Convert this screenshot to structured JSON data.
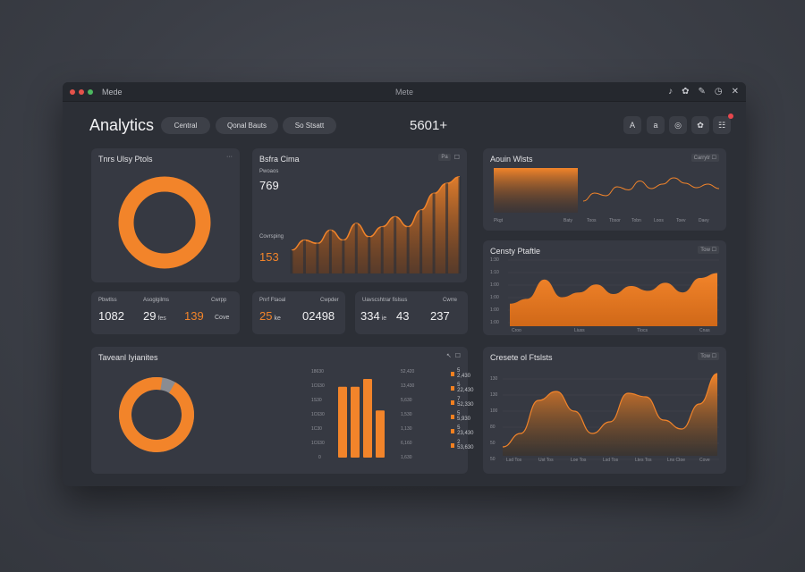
{
  "window": {
    "app_name": "Mede",
    "title": "Mete",
    "dot_colors": [
      "#e5534b",
      "#e5534b",
      "#4cb860"
    ],
    "icons": [
      "bell-icon",
      "gear-icon",
      "link-icon",
      "clock-icon",
      "close-icon"
    ],
    "icon_glyphs": [
      "♪",
      "✿",
      "✎",
      "◷",
      "✕"
    ]
  },
  "header": {
    "title": "Analytics",
    "pills": [
      "Central",
      "Qonal Bauts",
      "So Stsatt"
    ],
    "counter": "5601+",
    "tools": [
      "A",
      "a",
      "◎",
      "✿",
      "☷"
    ]
  },
  "accent": "#f2842a",
  "cards": {
    "donut1": {
      "title": "Tnrs Ulsy Ptols",
      "menu": "···",
      "percent": 100
    },
    "bars1": {
      "title": "Bsfra Cima",
      "ctrl": "Pa",
      "ctrl2": "☐",
      "stat1_label": "Pwoaos",
      "stat1_value": "769",
      "stat2_label": "Covrsping",
      "stat2_value": "153"
    },
    "area1": {
      "title": "Aouin Wlsts",
      "ctrl": "Carrytr ☐",
      "xlabels": [
        "Pkgt",
        "Baty",
        "Toos",
        "Tbsor",
        "Tobn",
        "Loos",
        "Toev",
        "Daey"
      ]
    },
    "area2": {
      "title": "Censty Ptaftle",
      "ctrl": "Tow ☐",
      "ylabels": [
        "1:30",
        "1:10",
        "1:00",
        "1:00",
        "1:00",
        "1:00"
      ],
      "xlabels": [
        "Croo",
        "Liuss",
        "Tlocs",
        "Cnas"
      ]
    },
    "stats1": {
      "labels": [
        "Pbwtlss",
        "Asoglgilms",
        "Cwrpp"
      ],
      "v1": "1082",
      "v2": "29",
      "v2_unit": "fes",
      "v3": "139",
      "v3_unit": "Cove"
    },
    "stats2": {
      "labels": [
        "Pnrf Ftaoal",
        "Cwpder"
      ],
      "v1": "25",
      "v1_unit": "ke",
      "v2": "02498"
    },
    "stats3": {
      "labels": [
        "Uavscshtrar fislsus",
        "Cwrre"
      ],
      "v1": "334",
      "v1_unit": "ie",
      "v2": "43",
      "v3": "237"
    },
    "breakdown": {
      "title": "Taveanl Iyianites",
      "ctrl": "☐",
      "donut_percent": 94,
      "ylabels": [
        "18630",
        "1C630",
        "1S30",
        "1C630",
        "1C30",
        "1C630",
        "0"
      ],
      "ylabels2": [
        "52,420",
        "13,430",
        "5,630",
        "1,530",
        "1,130",
        "6,160",
        "1,630"
      ],
      "legend": [
        "5 2,430",
        "5 22,430",
        "7 52,330",
        "5 5,930",
        "5 23,430",
        "2 53,630"
      ]
    },
    "area3": {
      "title": "Cresete ol Ftslsts",
      "ctrl": "Tow ☐",
      "ylabels": [
        "130",
        "130",
        "100",
        "80",
        "50",
        "50"
      ],
      "xlabels": [
        "Lsd Tos",
        "Ust Tos",
        "Loe Tos",
        "Lsd Tos",
        "Ltes Tos",
        "Lns Ctoe",
        "Cove"
      ]
    }
  },
  "chart_data": [
    {
      "type": "bar",
      "title": "Bsfra Cima",
      "categories": [
        "1",
        "2",
        "3",
        "4",
        "5",
        "6",
        "7",
        "8",
        "9",
        "10",
        "11",
        "12",
        "13",
        "14"
      ],
      "values": [
        14,
        20,
        18,
        26,
        20,
        30,
        22,
        28,
        34,
        28,
        38,
        48,
        54,
        58
      ]
    },
    {
      "type": "line",
      "title": "Aouin Wlsts",
      "x": [
        0,
        1,
        2,
        3,
        4,
        5,
        6,
        7,
        8,
        9,
        10,
        11,
        12
      ],
      "values": [
        30,
        48,
        42,
        62,
        55,
        75,
        58,
        68,
        82,
        70,
        60,
        68,
        58
      ]
    },
    {
      "type": "area",
      "title": "Censty Ptaftle",
      "x": [
        0,
        1,
        2,
        3,
        4,
        5,
        6,
        7,
        8,
        9,
        10,
        11,
        12
      ],
      "values": [
        28,
        34,
        58,
        36,
        42,
        52,
        40,
        50,
        44,
        54,
        42,
        60,
        66
      ]
    },
    {
      "type": "bar",
      "title": "Taveanl Iyianites",
      "categories": [
        "a",
        "b",
        "c",
        "d"
      ],
      "values": [
        72,
        72,
        80,
        48
      ]
    },
    {
      "type": "area",
      "title": "Cresete ol Ftslsts",
      "x": [
        0,
        1,
        2,
        3,
        4,
        5,
        6,
        7,
        8,
        9,
        10,
        11,
        12
      ],
      "values": [
        10,
        25,
        62,
        72,
        50,
        25,
        38,
        70,
        66,
        40,
        30,
        58,
        92
      ]
    }
  ]
}
